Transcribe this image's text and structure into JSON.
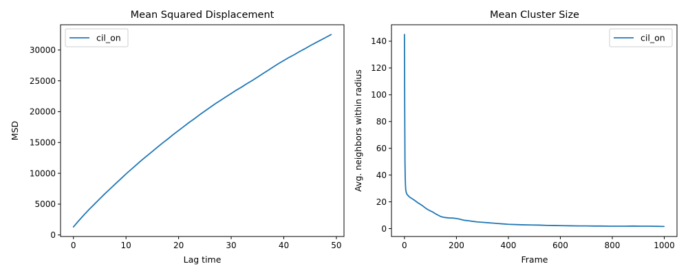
{
  "chart_data": [
    {
      "type": "line",
      "title": "Mean Squared Displacement",
      "xlabel": "Lag time",
      "ylabel": "MSD",
      "xlim": [
        -2.45,
        51.45
      ],
      "ylim": [
        -250,
        34100
      ],
      "xticks": [
        0,
        10,
        20,
        30,
        40,
        50
      ],
      "yticks": [
        0,
        5000,
        10000,
        15000,
        20000,
        25000,
        30000
      ],
      "grid": false,
      "legend_position": "upper-left",
      "series": [
        {
          "name": "cil_on",
          "color": "#1f77b4",
          "x": [
            0,
            1,
            2,
            3,
            4,
            5,
            6,
            7,
            8,
            9,
            10,
            11,
            12,
            13,
            14,
            15,
            16,
            17,
            18,
            19,
            20,
            21,
            22,
            23,
            24,
            25,
            26,
            27,
            28,
            29,
            30,
            31,
            32,
            33,
            34,
            35,
            36,
            37,
            38,
            39,
            40,
            41,
            42,
            43,
            44,
            45,
            46,
            47,
            48,
            49
          ],
          "y": [
            1300,
            2300,
            3250,
            4150,
            5000,
            5850,
            6700,
            7500,
            8300,
            9100,
            9900,
            10650,
            11400,
            12150,
            12850,
            13550,
            14250,
            14950,
            15600,
            16300,
            16950,
            17600,
            18250,
            18850,
            19500,
            20100,
            20700,
            21300,
            21850,
            22400,
            22950,
            23500,
            24000,
            24550,
            25050,
            25600,
            26150,
            26700,
            27250,
            27800,
            28300,
            28800,
            29250,
            29750,
            30200,
            30700,
            31150,
            31600,
            32050,
            32500
          ]
        }
      ]
    },
    {
      "type": "line",
      "title": "Mean Cluster Size",
      "xlabel": "Frame",
      "ylabel": "Avg. neighbors within radius",
      "xlim": [
        -49.95,
        1048.95
      ],
      "ylim": [
        -5.9,
        152.3
      ],
      "xticks": [
        0,
        200,
        400,
        600,
        800,
        1000
      ],
      "yticks": [
        0,
        20,
        40,
        60,
        80,
        100,
        120,
        140
      ],
      "grid": false,
      "legend_position": "upper-right",
      "series": [
        {
          "name": "cil_on",
          "color": "#1f77b4",
          "x": [
            0,
            1,
            2,
            3,
            4,
            5,
            7,
            10,
            15,
            20,
            30,
            40,
            50,
            60,
            70,
            80,
            90,
            100,
            110,
            120,
            130,
            140,
            150,
            160,
            170,
            180,
            190,
            200,
            210,
            220,
            230,
            240,
            250,
            260,
            280,
            300,
            320,
            340,
            360,
            380,
            400,
            430,
            460,
            490,
            520,
            550,
            580,
            610,
            640,
            670,
            700,
            730,
            760,
            790,
            820,
            850,
            880,
            910,
            940,
            970,
            999
          ],
          "y": [
            145,
            90,
            50,
            38,
            32,
            29,
            27,
            25.5,
            24.5,
            23.5,
            22.3,
            21,
            19.5,
            18.3,
            17,
            15.5,
            14.2,
            13.2,
            12.3,
            11,
            10,
            9,
            8.5,
            8.2,
            8,
            7.9,
            7.8,
            7.5,
            7.2,
            6.7,
            6.2,
            6,
            5.8,
            5.5,
            5,
            4.7,
            4.4,
            4.1,
            3.8,
            3.5,
            3.2,
            3,
            2.8,
            2.7,
            2.6,
            2.4,
            2.3,
            2.2,
            2.1,
            2,
            2,
            1.9,
            1.9,
            1.8,
            1.8,
            1.8,
            1.9,
            1.8,
            1.8,
            1.7,
            1.6
          ]
        }
      ]
    }
  ]
}
